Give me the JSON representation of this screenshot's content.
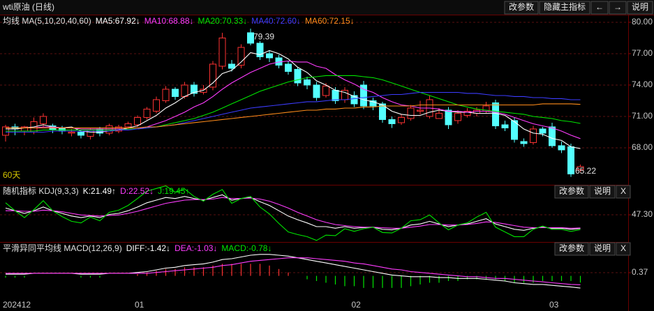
{
  "header": {
    "title": "wti原油 (日线)",
    "buttons": [
      "改参数",
      "隐藏主指标",
      "←",
      "→",
      "说明"
    ]
  },
  "chart_data": [
    {
      "type": "candlestick",
      "title": "均线 MA(5,10,20,40,60)",
      "period_label": "60天",
      "high_label": "79.39",
      "low_label": "65.22",
      "up_color": "#ff3232",
      "down_color": "#54ffff",
      "categories": [
        "202412",
        null,
        null,
        null,
        null,
        null,
        null,
        null,
        null,
        null,
        null,
        null,
        null,
        null,
        "01",
        null,
        null,
        null,
        null,
        null,
        null,
        null,
        null,
        null,
        null,
        null,
        null,
        null,
        null,
        null,
        null,
        null,
        null,
        null,
        null,
        null,
        null,
        "02",
        null,
        null,
        null,
        null,
        null,
        null,
        null,
        null,
        null,
        null,
        null,
        null,
        null,
        null,
        null,
        null,
        null,
        null,
        null,
        null,
        "03",
        null,
        null,
        null
      ],
      "open": [
        69.2,
        70.0,
        69.6,
        69.5,
        70.3,
        70.1,
        69.9,
        69.4,
        69.5,
        69.1,
        69.8,
        69.4,
        69.6,
        70.0,
        70.2,
        70.9,
        71.5,
        72.5,
        73.6,
        72.9,
        74.0,
        73.3,
        73.8,
        75.8,
        76.0,
        75.9,
        79.0,
        78.0,
        77.0,
        76.6,
        76.0,
        75.5,
        74.5,
        74.0,
        73.0,
        73.5,
        72.6,
        73.0,
        74.0,
        72.5,
        72.2,
        70.7,
        70.4,
        70.8,
        71.5,
        71.0,
        70.8,
        71.6,
        70.6,
        71.1,
        71.3,
        71.5,
        72.3,
        70.2,
        70.6,
        68.6,
        68.5,
        69.8,
        70.0,
        68.2,
        68.1,
        65.9
      ],
      "high": [
        70.2,
        70.3,
        70.1,
        70.9,
        71.3,
        70.3,
        70.1,
        69.8,
        69.7,
        69.9,
        70.0,
        70.3,
        70.2,
        70.5,
        71.1,
        71.9,
        72.9,
        73.9,
        73.8,
        74.3,
        74.3,
        74.0,
        76.3,
        79.0,
        76.4,
        77.9,
        79.39,
        78.2,
        77.3,
        76.9,
        76.3,
        75.7,
        74.8,
        74.3,
        74.2,
        73.8,
        73.8,
        73.4,
        74.4,
        72.8,
        72.4,
        71.0,
        71.2,
        72.1,
        72.5,
        73.0,
        71.8,
        71.9,
        71.6,
        71.8,
        71.9,
        72.4,
        72.6,
        70.6,
        70.9,
        68.9,
        70.1,
        70.0,
        70.4,
        68.6,
        68.4,
        66.4
      ],
      "low": [
        68.6,
        69.2,
        69.2,
        69.3,
        70.0,
        69.4,
        69.3,
        69.1,
        68.9,
        68.8,
        69.1,
        69.2,
        69.4,
        69.8,
        70.0,
        70.7,
        71.3,
        72.3,
        72.6,
        72.7,
        72.9,
        73.1,
        73.5,
        75.5,
        75.3,
        75.6,
        77.8,
        76.4,
        76.2,
        75.6,
        75.0,
        73.9,
        73.6,
        72.5,
        72.8,
        72.2,
        72.3,
        71.9,
        71.7,
        71.6,
        70.4,
        69.9,
        70.2,
        70.6,
        71.2,
        70.8,
        70.9,
        69.8,
        70.3,
        70.9,
        71.0,
        71.3,
        69.8,
        69.6,
        68.5,
        68.1,
        68.3,
        69.1,
        68.0,
        67.5,
        65.22,
        65.7
      ],
      "close": [
        70.0,
        69.8,
        70.0,
        70.5,
        71.0,
        69.7,
        69.6,
        69.5,
        69.2,
        69.7,
        69.4,
        70.1,
        70.0,
        70.3,
        70.9,
        71.7,
        72.6,
        73.6,
        72.9,
        74.0,
        73.2,
        73.6,
        76.0,
        78.5,
        75.6,
        77.6,
        78.0,
        76.7,
        76.6,
        75.9,
        75.3,
        74.2,
        74.0,
        72.8,
        73.9,
        72.5,
        73.5,
        72.2,
        72.0,
        72.0,
        70.7,
        70.3,
        70.9,
        71.8,
        71.6,
        72.6,
        71.3,
        70.2,
        71.3,
        71.5,
        71.6,
        72.0,
        70.1,
        69.9,
        68.8,
        68.4,
        69.8,
        69.4,
        68.2,
        67.8,
        65.5,
        66.2
      ],
      "series": [
        {
          "name": "MA5:67.92↓",
          "color": "#ffffff",
          "values": [
            69.8,
            69.8,
            69.9,
            70.0,
            70.2,
            70.0,
            69.9,
            70.0,
            69.6,
            69.5,
            69.5,
            69.6,
            69.7,
            69.9,
            70.1,
            70.6,
            71.1,
            71.8,
            72.3,
            72.9,
            73.3,
            73.5,
            74.2,
            75.1,
            75.4,
            76.2,
            77.1,
            76.9,
            77.3,
            77.0,
            76.5,
            75.7,
            75.2,
            74.4,
            74.0,
            73.5,
            73.3,
            72.9,
            72.6,
            72.4,
            72.1,
            71.5,
            71.2,
            71.1,
            71.1,
            71.4,
            71.6,
            71.5,
            71.4,
            71.4,
            71.3,
            71.3,
            71.3,
            71.1,
            70.5,
            69.8,
            69.4,
            69.3,
            68.9,
            68.7,
            68.1,
            67.92
          ]
        },
        {
          "name": "MA10:68.88↓",
          "color": "#ff3cff",
          "values": [
            69.9,
            69.9,
            69.9,
            69.9,
            70.0,
            70.0,
            69.9,
            69.9,
            69.8,
            69.8,
            69.8,
            69.8,
            69.8,
            69.8,
            69.8,
            70.0,
            70.3,
            70.6,
            71.0,
            71.4,
            71.9,
            72.3,
            72.9,
            73.6,
            74.2,
            74.7,
            75.2,
            75.6,
            76.0,
            76.2,
            76.3,
            76.2,
            76.2,
            75.8,
            75.6,
            75.0,
            74.5,
            74.1,
            73.6,
            73.3,
            72.8,
            72.4,
            72.1,
            72.0,
            71.8,
            71.8,
            71.7,
            71.5,
            71.5,
            71.4,
            71.5,
            71.5,
            71.4,
            71.2,
            70.9,
            70.6,
            70.3,
            70.1,
            69.9,
            69.6,
            69.2,
            68.88
          ]
        },
        {
          "name": "MA20:70.33↓",
          "color": "#00e600",
          "values": [
            69.6,
            69.6,
            69.6,
            69.6,
            69.7,
            69.7,
            69.7,
            69.7,
            69.7,
            69.7,
            69.7,
            69.7,
            69.7,
            69.8,
            69.8,
            69.9,
            70.0,
            70.2,
            70.4,
            70.6,
            70.8,
            71.1,
            71.4,
            71.8,
            72.2,
            72.6,
            73.0,
            73.4,
            73.7,
            74.0,
            74.3,
            74.5,
            74.7,
            74.8,
            74.9,
            74.9,
            74.9,
            74.9,
            74.8,
            74.7,
            74.5,
            74.2,
            73.9,
            73.6,
            73.3,
            73.0,
            72.7,
            72.4,
            72.1,
            71.9,
            71.7,
            71.6,
            71.5,
            71.4,
            71.3,
            71.2,
            71.0,
            70.9,
            70.8,
            70.6,
            70.5,
            70.33
          ]
        },
        {
          "name": "MA40:72.60↓",
          "color": "#3c3cff",
          "values": [
            69.5,
            69.5,
            69.5,
            69.5,
            69.5,
            69.6,
            69.6,
            69.6,
            69.6,
            69.6,
            69.6,
            69.6,
            69.7,
            69.7,
            69.8,
            69.9,
            70.0,
            70.1,
            70.2,
            70.4,
            70.6,
            70.8,
            71.0,
            71.2,
            71.4,
            71.6,
            71.8,
            71.9,
            72.0,
            72.1,
            72.2,
            72.3,
            72.4,
            72.4,
            72.5,
            72.6,
            72.6,
            72.7,
            72.8,
            72.9,
            73.0,
            73.1,
            73.1,
            73.2,
            73.3,
            73.3,
            73.3,
            73.3,
            73.3,
            73.2,
            73.2,
            73.1,
            73.0,
            73.0,
            72.9,
            72.9,
            72.8,
            72.8,
            72.7,
            72.7,
            72.6,
            72.6
          ]
        },
        {
          "name": "MA60:72.15↓",
          "color": "#ff8c1a",
          "values": [
            69.9,
            69.9,
            69.9,
            69.9,
            69.9,
            69.9,
            69.9,
            69.9,
            69.9,
            69.9,
            69.9,
            69.9,
            69.9,
            69.9,
            69.9,
            70.0,
            70.0,
            70.1,
            70.2,
            70.3,
            70.4,
            70.5,
            70.6,
            70.7,
            70.8,
            70.9,
            71.0,
            71.1,
            71.2,
            71.3,
            71.4,
            71.5,
            71.6,
            71.6,
            71.7,
            71.7,
            71.8,
            71.8,
            71.9,
            71.9,
            72.0,
            72.0,
            72.0,
            72.0,
            72.1,
            72.1,
            72.1,
            72.1,
            72.1,
            72.1,
            72.1,
            72.1,
            72.1,
            72.1,
            72.1,
            72.1,
            72.1,
            72.2,
            72.2,
            72.2,
            72.2,
            72.15
          ]
        }
      ],
      "ylim": [
        64.53,
        80.53
      ],
      "yticks": [
        {
          "value": 80,
          "label": "80.00"
        },
        {
          "value": 77,
          "label": "77.00"
        },
        {
          "value": 74,
          "label": "74.00"
        },
        {
          "value": 71,
          "label": "71.00"
        },
        {
          "value": 68,
          "label": "68.00"
        }
      ],
      "grid": true
    },
    {
      "type": "line",
      "title": "随机指标 KDJ(9,3,3)",
      "buttons": [
        "改参数",
        "说明",
        "X"
      ],
      "series": [
        {
          "name": "K:21.49↑",
          "color": "#ffffff",
          "values": [
            60,
            55,
            50,
            55,
            62,
            55,
            50,
            45,
            42,
            45,
            42,
            48,
            50,
            55,
            62,
            70,
            75,
            80,
            78,
            82,
            78,
            75,
            80,
            85,
            75,
            78,
            80,
            72,
            65,
            55,
            45,
            38,
            32,
            25,
            25,
            22,
            25,
            22,
            23,
            24,
            20,
            19,
            22,
            28,
            30,
            35,
            30,
            25,
            28,
            30,
            35,
            40,
            30,
            25,
            20,
            18,
            22,
            24,
            22,
            22,
            20,
            21.49
          ]
        },
        {
          "name": "D:22.52↓",
          "color": "#ff3cff",
          "values": [
            55,
            55,
            54,
            54,
            56,
            55,
            53,
            50,
            47,
            46,
            45,
            46,
            47,
            50,
            54,
            59,
            64,
            69,
            72,
            75,
            76,
            76,
            77,
            80,
            78,
            78,
            79,
            77,
            73,
            67,
            60,
            52,
            45,
            38,
            33,
            29,
            27,
            25,
            24,
            24,
            23,
            22,
            22,
            24,
            26,
            29,
            29,
            28,
            28,
            29,
            31,
            34,
            33,
            30,
            27,
            24,
            23,
            23,
            23,
            23,
            22,
            22.52
          ]
        },
        {
          "name": "J:19.45↑",
          "color": "#00e600",
          "values": [
            70,
            55,
            42,
            57,
            74,
            55,
            44,
            35,
            32,
            43,
            36,
            52,
            56,
            65,
            78,
            92,
            97,
            102,
            90,
            96,
            82,
            73,
            86,
            95,
            69,
            78,
            82,
            62,
            49,
            31,
            15,
            10,
            6,
            -1,
            9,
            8,
            21,
            16,
            21,
            24,
            14,
            13,
            22,
            36,
            38,
            47,
            32,
            19,
            28,
            32,
            43,
            52,
            24,
            15,
            6,
            6,
            20,
            26,
            20,
            20,
            16,
            19.45
          ]
        }
      ],
      "ylim": [
        0,
        100
      ],
      "yticks": [
        {
          "value": 47.3,
          "label": "47.30"
        }
      ],
      "grid": true
    },
    {
      "type": "macd",
      "title": "平滑异同平均线 MACD(12,26,9)",
      "buttons": [
        "改参数",
        "说明",
        "X"
      ],
      "up_color": "#ff3232",
      "down_color": "#00e600",
      "series": [
        {
          "name": "DIFF:-1.42↓",
          "color": "#ffffff",
          "style": "line",
          "values": [
            0.2,
            0.2,
            0.2,
            0.3,
            0.3,
            0.3,
            0.3,
            0.3,
            0.2,
            0.2,
            0.2,
            0.3,
            0.3,
            0.3,
            0.4,
            0.5,
            0.7,
            0.9,
            1.0,
            1.2,
            1.3,
            1.4,
            1.6,
            1.9,
            2.0,
            2.2,
            2.4,
            2.5,
            2.5,
            2.4,
            2.3,
            2.1,
            1.9,
            1.7,
            1.5,
            1.3,
            1.1,
            0.9,
            0.7,
            0.5,
            0.3,
            0.1,
            0,
            -0.1,
            -0.1,
            -0.1,
            -0.2,
            -0.2,
            -0.3,
            -0.3,
            -0.3,
            -0.4,
            -0.5,
            -0.6,
            -0.8,
            -0.9,
            -1.0,
            -1.0,
            -1.1,
            -1.2,
            -1.3,
            -1.42
          ]
        },
        {
          "name": "DEA:-1.03↓",
          "color": "#ff3cff",
          "style": "line",
          "values": [
            0.3,
            0.3,
            0.3,
            0.3,
            0.3,
            0.3,
            0.3,
            0.3,
            0.3,
            0.3,
            0.3,
            0.3,
            0.3,
            0.3,
            0.3,
            0.3,
            0.4,
            0.5,
            0.6,
            0.7,
            0.8,
            0.9,
            1.0,
            1.2,
            1.3,
            1.5,
            1.7,
            1.8,
            1.9,
            2.0,
            2.1,
            2.1,
            2.1,
            2.0,
            1.9,
            1.8,
            1.7,
            1.5,
            1.4,
            1.2,
            1.0,
            0.8,
            0.7,
            0.5,
            0.4,
            0.3,
            0.2,
            0.1,
            0,
            -0.1,
            -0.1,
            -0.2,
            -0.3,
            -0.3,
            -0.4,
            -0.5,
            -0.6,
            -0.7,
            -0.8,
            -0.9,
            -1.0,
            -1.03
          ]
        },
        {
          "name": "MACD:-0.78↓",
          "color": "#00e600",
          "style": "bar",
          "values": [
            -0.2,
            -0.2,
            -0.2,
            0,
            0,
            0,
            0,
            0,
            -0.2,
            -0.2,
            -0.2,
            0,
            0,
            0,
            0.2,
            0.4,
            0.6,
            0.8,
            0.8,
            1.0,
            1.0,
            1.0,
            1.2,
            1.4,
            1.4,
            1.4,
            1.4,
            1.4,
            1.2,
            0.8,
            0.4,
            0,
            -0.4,
            -0.6,
            -0.8,
            -1.0,
            -1.2,
            -1.2,
            -1.4,
            -1.4,
            -1.4,
            -1.4,
            -1.4,
            -1.2,
            -1.0,
            -0.8,
            -0.8,
            -0.6,
            -0.6,
            -0.4,
            -0.4,
            -0.4,
            -0.4,
            -0.6,
            -0.8,
            -0.8,
            -0.8,
            -0.6,
            -0.6,
            -0.6,
            -0.6,
            -0.78
          ]
        }
      ],
      "ylim": [
        -3.6,
        3.7
      ],
      "yticks": [
        0.37
      ],
      "grid": true
    }
  ]
}
